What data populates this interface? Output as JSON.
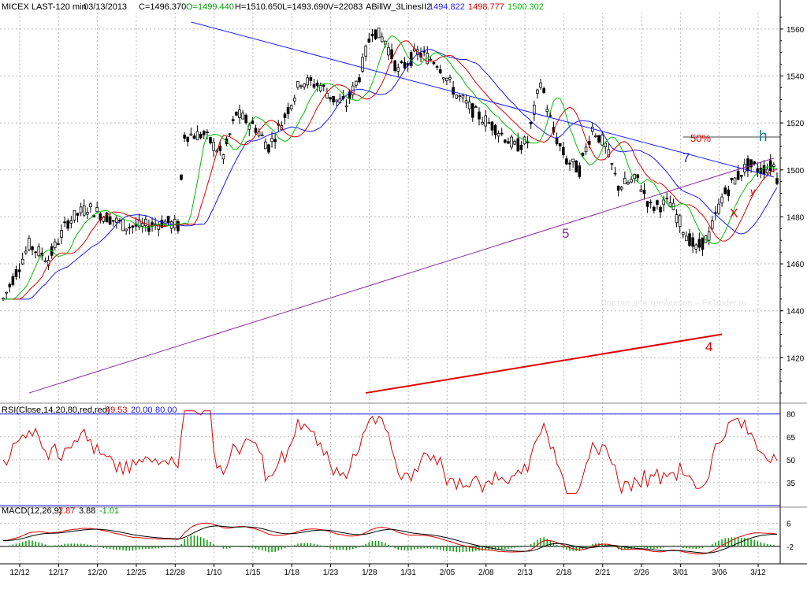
{
  "header": {
    "symbol": "MICEX LAST-120 min",
    "date": "03/13/2013",
    "close": "C=1496.370",
    "open": "O=1499.440",
    "high": "H=1510.650",
    "low": "L=1493.690",
    "volume": "V=22083",
    "indicator": "ABillW_3LinesII2",
    "line1": "1494.822",
    "line2": "1498.777",
    "line3": "1500.302"
  },
  "colors": {
    "blue": "#1a1aff",
    "red": "#e00000",
    "green": "#00c000",
    "purple": "#8a2b9e",
    "teal": "#1a7f8e",
    "grid": "#b8b8b8"
  },
  "chart_data": [
    {
      "type": "candlestick",
      "price_ticks": [
        1420,
        1440,
        1460,
        1480,
        1500,
        1520,
        1540,
        1560
      ],
      "ylim": [
        1402,
        1567
      ],
      "x_ticks": [
        "12/12",
        "12/17",
        "12/20",
        "12/25",
        "12/28",
        "1/10",
        "1/15",
        "1/18",
        "1/23",
        "1/28",
        "1/31",
        "2/05",
        "2/08",
        "2/13",
        "2/18",
        "2/21",
        "2/26",
        "3/01",
        "3/06",
        "3/12"
      ],
      "bar_count": 240,
      "last_close": 1496.37,
      "annotations": {
        "label_7": "7",
        "label_5": "5",
        "label_4": "4",
        "label_50": "50%",
        "label_h": "h",
        "label_x": "X",
        "label_y": "y",
        "watermark": "Портал для трейдеров – FxTrader.ru"
      },
      "trendlines": [
        {
          "name": "7",
          "color": "blue",
          "from": [
            58,
            1563
          ],
          "to": [
            238,
            1497
          ]
        },
        {
          "name": "5",
          "color": "purple",
          "from": [
            8,
            1405
          ],
          "to": [
            238,
            1505
          ]
        },
        {
          "name": "4",
          "color": "red",
          "from": [
            112,
            1405
          ],
          "to": [
            222,
            1430
          ]
        },
        {
          "name": "h",
          "color": "gray",
          "from": [
            210,
            1514
          ],
          "to": [
            240,
            1514
          ]
        }
      ]
    },
    {
      "type": "line",
      "label": "RSI(Close,14,20,80,red,red)",
      "value": "49.53",
      "lower": "20.00",
      "upper": "80.00",
      "ticks": [
        35,
        50,
        65,
        80
      ],
      "ylim": [
        20,
        85
      ]
    },
    {
      "type": "line",
      "label": "MACD(12,26,9)",
      "macd": "2.87",
      "signal": "3.88",
      "hist": "-1.01",
      "ticks": [
        -2,
        6
      ],
      "ylim": [
        -8,
        11
      ]
    }
  ]
}
